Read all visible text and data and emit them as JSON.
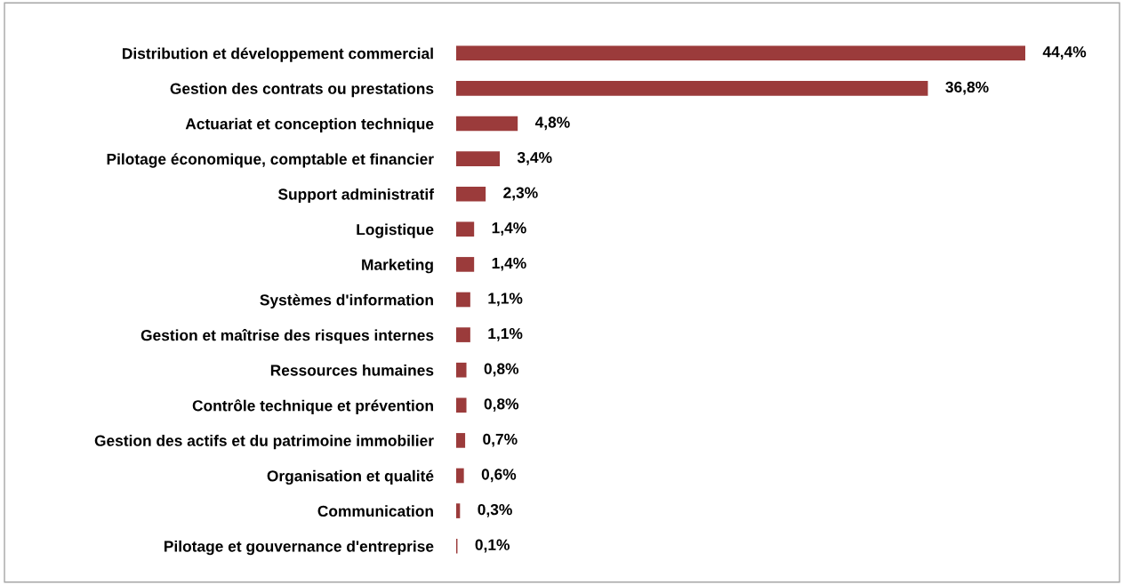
{
  "chart_data": {
    "type": "bar",
    "orientation": "horizontal",
    "categories": [
      "Distribution et développement commercial",
      "Gestion des contrats ou prestations",
      "Actuariat et conception technique",
      "Pilotage économique, comptable et financier",
      "Support administratif",
      "Logistique",
      "Marketing",
      "Systèmes d'information",
      "Gestion et maîtrise des risques internes",
      "Ressources humaines",
      "Contrôle technique et prévention",
      "Gestion des actifs et du patrimoine immobilier",
      "Organisation et qualité",
      "Communication",
      "Pilotage et gouvernance d'entreprise"
    ],
    "values": [
      44.4,
      36.8,
      4.8,
      3.4,
      2.3,
      1.4,
      1.4,
      1.1,
      1.1,
      0.8,
      0.8,
      0.7,
      0.6,
      0.3,
      0.1
    ],
    "value_labels": [
      "44,4%",
      "36,8%",
      "4,8%",
      "3,4%",
      "2,3%",
      "1,4%",
      "1,4%",
      "1,1%",
      "1,1%",
      "0,8%",
      "0,8%",
      "0,7%",
      "0,6%",
      "0,3%",
      "0,1%"
    ],
    "color": "#9b3b3b",
    "grid": false,
    "legend": false
  }
}
